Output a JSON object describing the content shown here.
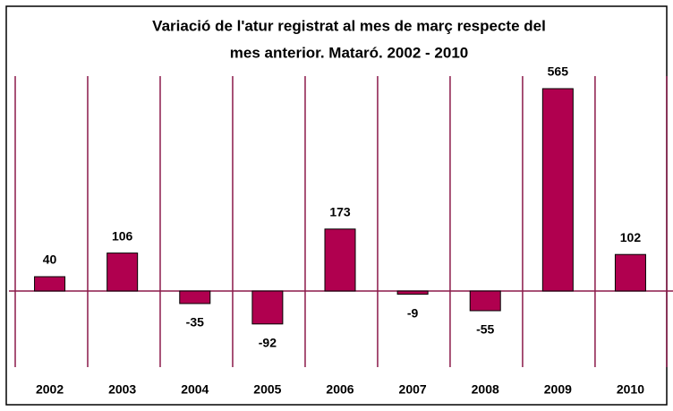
{
  "chart_data": {
    "type": "bar",
    "title": [
      "Variació de l'atur registrat al mes de març respecte del",
      "mes anterior. Mataró. 2002 - 2010"
    ],
    "categories": [
      "2002",
      "2003",
      "2004",
      "2005",
      "2006",
      "2007",
      "2008",
      "2009",
      "2010"
    ],
    "values": [
      40,
      106,
      -35,
      -92,
      173,
      -9,
      -55,
      565,
      102
    ],
    "color": "#b0004f",
    "ylim": [
      -200,
      600
    ]
  }
}
